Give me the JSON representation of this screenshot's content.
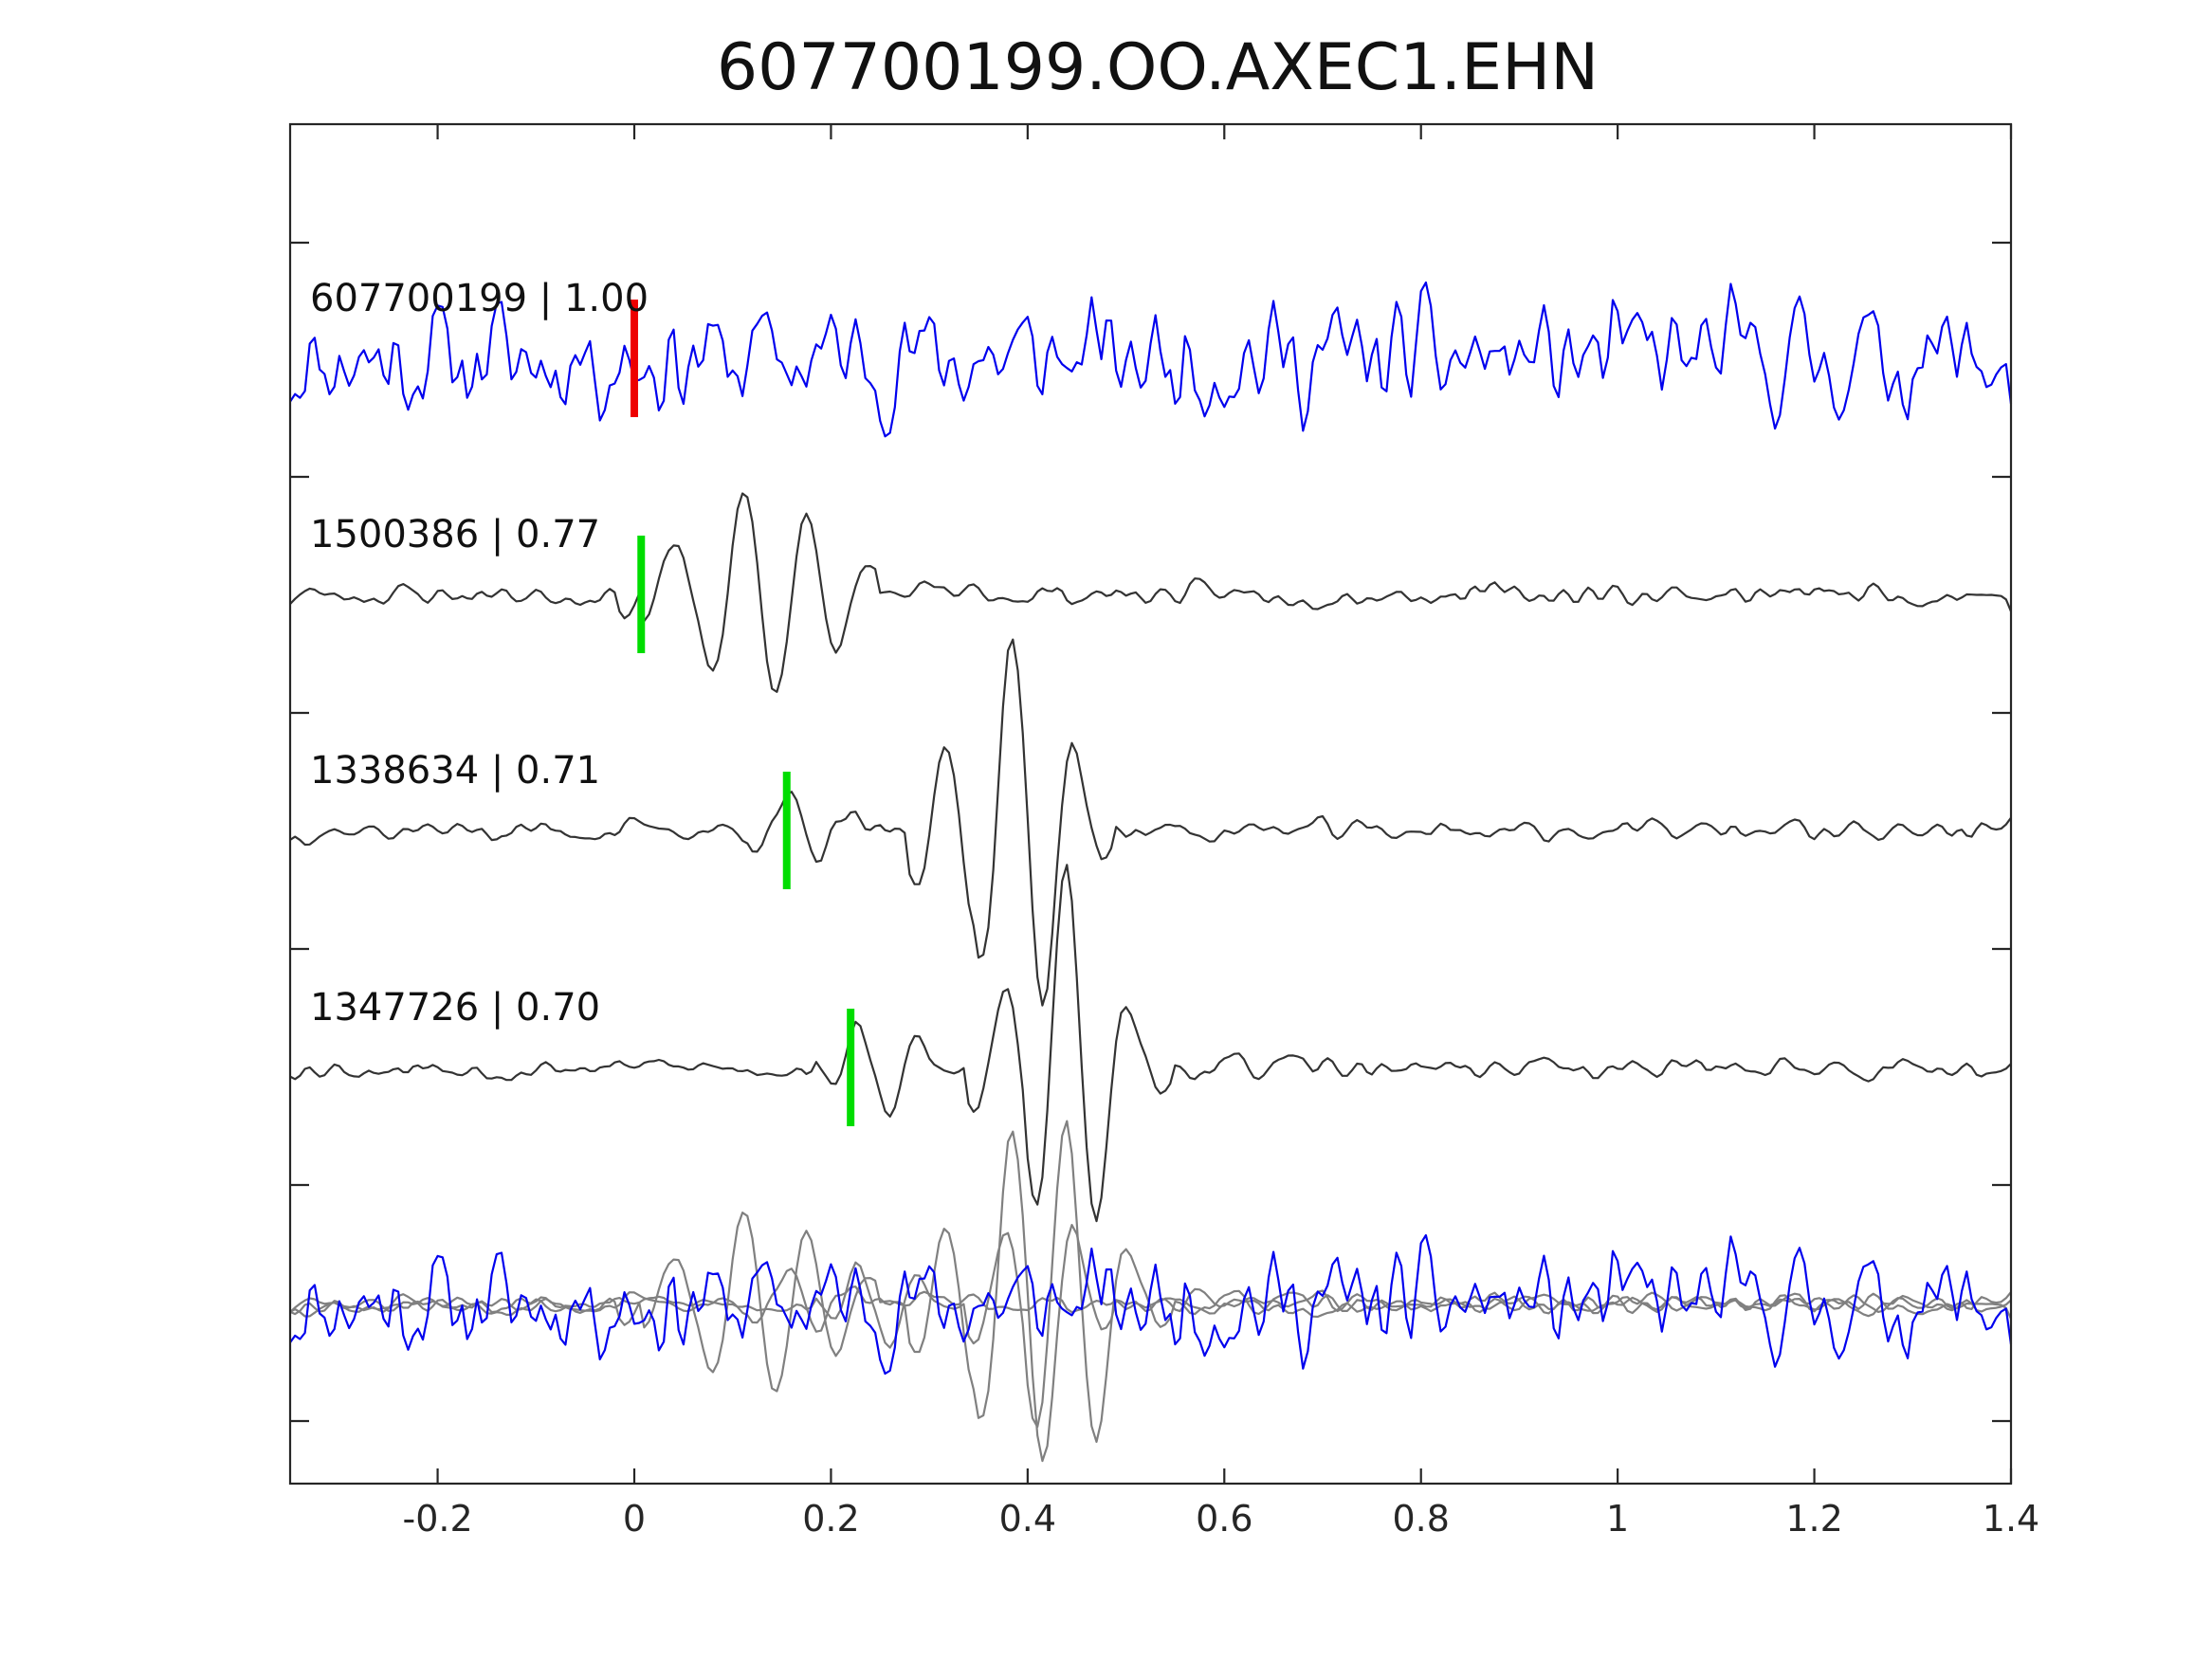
{
  "chart_data": {
    "type": "line",
    "title": "607700199.OO.AXEC1.EHN",
    "xlabel": "",
    "ylabel": "",
    "xlim": [
      -0.35,
      1.4
    ],
    "x_ticks": [
      "-0.2",
      "0",
      "0.2",
      "0.4",
      "0.6",
      "0.8",
      "1",
      "1.2",
      "1.4"
    ],
    "grid": false,
    "sample_interval": 0.005,
    "colors": {
      "target": "#0000ee",
      "neighbor": "#333333",
      "overlay_neighbor": "#808080",
      "target_pick": "#ee0000",
      "neighbor_pick": "#00dd00"
    },
    "traces": [
      {
        "label": "607700199 | 1.00",
        "event_id": "607700199",
        "correlation": 1.0,
        "role": "target",
        "pick_time": 0.0,
        "seed": 11,
        "envelope": []
      },
      {
        "label": "1500386 | 0.77",
        "event_id": "1500386",
        "correlation": 0.77,
        "role": "neighbor",
        "pick_time": 0.007,
        "seed": 23,
        "envelope": [
          [
            0.005,
            0.35,
            0.07
          ],
          [
            0.03,
            1.0,
            0.17
          ]
        ]
      },
      {
        "label": "1338634 | 0.71",
        "event_id": "1338634",
        "correlation": 0.71,
        "role": "neighbor",
        "pick_time": 0.155,
        "seed": 37,
        "envelope": [
          [
            0.14,
            0.3,
            0.06
          ],
          [
            0.3,
            1.0,
            0.14
          ],
          [
            0.37,
            1.0,
            0.06
          ]
        ]
      },
      {
        "label": "1347726 | 0.70",
        "event_id": "1347726",
        "correlation": 0.7,
        "role": "neighbor",
        "pick_time": 0.22,
        "seed": 53,
        "envelope": [
          [
            0.21,
            0.4,
            0.07
          ],
          [
            0.36,
            1.0,
            0.14
          ],
          [
            0.42,
            1.0,
            0.05
          ]
        ]
      }
    ],
    "overlay": {
      "description": "all traces superimposed",
      "includes": [
        "607700199",
        "1500386",
        "1338634",
        "1347726"
      ]
    }
  }
}
